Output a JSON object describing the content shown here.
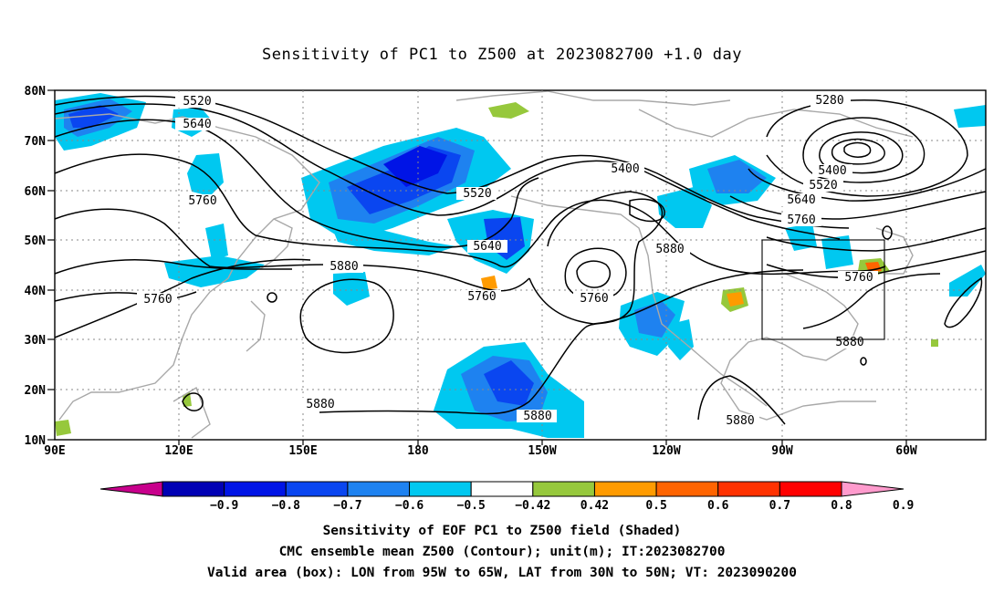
{
  "title": "Sensitivity of PC1 to Z500 at 2023082700 +1.0 day",
  "map": {
    "lat_labels": [
      "80N",
      "70N",
      "60N",
      "50N",
      "40N",
      "30N",
      "20N",
      "10N"
    ],
    "lon_labels": [
      "90E",
      "120E",
      "150E",
      "180",
      "150W",
      "120W",
      "90W",
      "60W"
    ],
    "contour_labels": [
      {
        "text": "5520"
      },
      {
        "text": "5640"
      },
      {
        "text": "5760"
      },
      {
        "text": "5520"
      },
      {
        "text": "5640"
      },
      {
        "text": "5880"
      },
      {
        "text": "5760"
      },
      {
        "text": "5760"
      },
      {
        "text": "5760"
      },
      {
        "text": "5880"
      },
      {
        "text": "5400"
      },
      {
        "text": "5280"
      },
      {
        "text": "5400"
      },
      {
        "text": "5520"
      },
      {
        "text": "5640"
      },
      {
        "text": "5760"
      },
      {
        "text": "5880"
      },
      {
        "text": "5880"
      },
      {
        "text": "5880"
      },
      {
        "text": "5880"
      },
      {
        "text": "5760"
      }
    ],
    "valid_box": {
      "lon_from": "95W",
      "lon_to": "65W",
      "lat_from": "30N",
      "lat_to": "50N"
    }
  },
  "colorbar": {
    "labels": [
      "-0.9",
      "-0.8",
      "-0.7",
      "-0.6",
      "-0.5",
      "-0.42",
      "0.42",
      "0.5",
      "0.6",
      "0.7",
      "0.8",
      "0.9"
    ],
    "colors": [
      "#c8008c",
      "#0000b4",
      "#0014e6",
      "#0a46f0",
      "#1e82f0",
      "#00c8f0",
      "#ffffff",
      "#96c83c",
      "#ff9b00",
      "#ff6400",
      "#ff3200",
      "#ff0000",
      "#ff9bcd"
    ]
  },
  "captions": {
    "line1": "Sensitivity of EOF PC1 to Z500 field (Shaded)",
    "line2": "CMC ensemble mean Z500 (Contour); unit(m); IT:2023082700",
    "line3": "Valid area (box): LON from 95W to 65W, LAT from 30N to 50N; VT: 2023090200"
  }
}
